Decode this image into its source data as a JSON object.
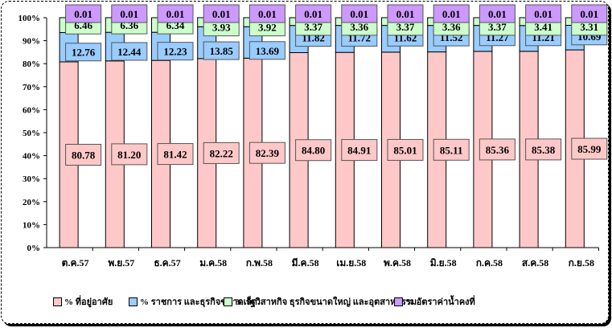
{
  "chart_data": {
    "type": "bar",
    "stacked": true,
    "categories": [
      "ต.ค.57",
      "พ.ย.57",
      "ธ.ค.57",
      "ม.ค.58",
      "ก.พ.58",
      "มี.ค.58",
      "เม.ย.58",
      "พ.ค.58",
      "มิ.ย.58",
      "ก.ค.58",
      "ส.ค.58",
      "ก.ย.58"
    ],
    "series": [
      {
        "name": "% ที่อยู่อาศัย",
        "color": "#ffc8c8",
        "values": [
          80.78,
          81.2,
          81.42,
          82.22,
          82.39,
          84.8,
          84.91,
          85.01,
          85.11,
          85.36,
          85.38,
          85.99
        ]
      },
      {
        "name": "% ราชการ และธุรกิจขนาดเล็ก",
        "color": "#99ccff",
        "values": [
          12.76,
          12.44,
          12.23,
          13.85,
          13.69,
          11.82,
          11.72,
          11.62,
          11.52,
          11.27,
          11.21,
          10.69
        ]
      },
      {
        "name": "% รัฐวิสาหกิจ ธุรกิจขนาดใหญ่ และอุตสาหกรรม",
        "color": "#ccffcc",
        "values": [
          6.46,
          6.36,
          6.34,
          3.93,
          3.92,
          3.37,
          3.36,
          3.37,
          3.36,
          3.37,
          3.41,
          3.31
        ]
      },
      {
        "name": "% อัตราค่าน้ำคงที่",
        "color": "#cc99ff",
        "values": [
          0.01,
          0.01,
          0.01,
          0.01,
          0.01,
          0.01,
          0.01,
          0.01,
          0.01,
          0.01,
          0.01,
          0.01
        ]
      }
    ],
    "yticks": [
      "0%",
      "10%",
      "20%",
      "30%",
      "40%",
      "50%",
      "60%",
      "70%",
      "80%",
      "90%",
      "100%"
    ],
    "ylim": [
      0,
      100
    ],
    "legend": "bottom",
    "grid": false
  }
}
